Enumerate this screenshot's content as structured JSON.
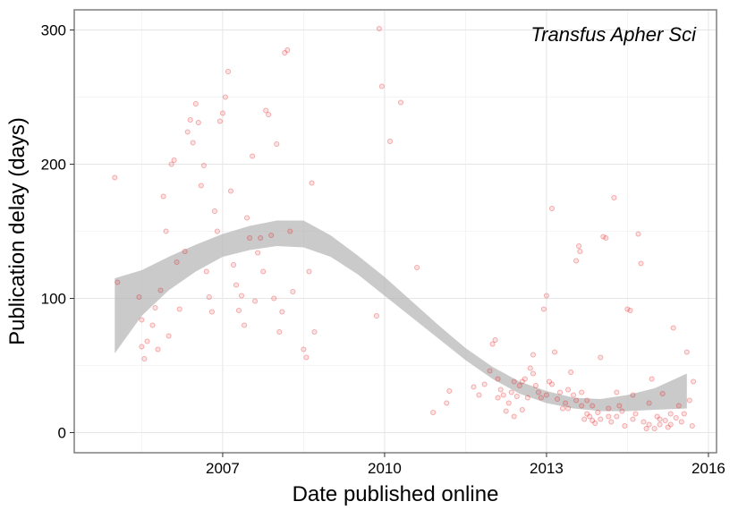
{
  "chart_data": {
    "type": "scatter",
    "title": "",
    "annotation": "Transfus Apher Sci",
    "xlabel": "Date published online",
    "ylabel": "Publication delay (days)",
    "xlim": [
      2004.25,
      2016.15
    ],
    "ylim": [
      -15,
      315
    ],
    "x_ticks": [
      2007,
      2010,
      2013,
      2016
    ],
    "x_tick_labels": [
      "2007",
      "2010",
      "2013",
      "2016"
    ],
    "y_ticks": [
      0,
      100,
      200,
      300
    ],
    "y_tick_labels": [
      "0",
      "100",
      "200",
      "300"
    ],
    "grid": true,
    "legend": "none",
    "point_color": "#e41a1c",
    "band_color": "#b3b3b3",
    "smooth_band": {
      "x": [
        2005.0,
        2005.5,
        2006.0,
        2006.5,
        2007.0,
        2007.5,
        2008.0,
        2008.5,
        2009.0,
        2009.5,
        2010.0,
        2010.5,
        2011.0,
        2011.5,
        2012.0,
        2012.5,
        2013.0,
        2013.5,
        2014.0,
        2014.5,
        2015.0,
        2015.6
      ],
      "lower": [
        59,
        87,
        106,
        120,
        131,
        136,
        139,
        138,
        131,
        118,
        102,
        86,
        70,
        54,
        40,
        29,
        22,
        18,
        16,
        16,
        17,
        18
      ],
      "upper": [
        115,
        121,
        131,
        140,
        148,
        154,
        158,
        158,
        147,
        132,
        116,
        98,
        80,
        63,
        49,
        38,
        31,
        26,
        25,
        28,
        33,
        44
      ]
    },
    "points": [
      [
        2005.0,
        190
      ],
      [
        2005.05,
        112
      ],
      [
        2005.45,
        101
      ],
      [
        2005.5,
        84
      ],
      [
        2005.5,
        64
      ],
      [
        2005.55,
        55
      ],
      [
        2005.6,
        68
      ],
      [
        2005.7,
        80
      ],
      [
        2005.75,
        93
      ],
      [
        2005.8,
        62
      ],
      [
        2005.85,
        106
      ],
      [
        2005.9,
        176
      ],
      [
        2005.95,
        150
      ],
      [
        2006.0,
        72
      ],
      [
        2006.05,
        200
      ],
      [
        2006.1,
        203
      ],
      [
        2006.15,
        127
      ],
      [
        2006.2,
        92
      ],
      [
        2006.3,
        135
      ],
      [
        2006.35,
        224
      ],
      [
        2006.4,
        233
      ],
      [
        2006.45,
        216
      ],
      [
        2006.5,
        245
      ],
      [
        2006.55,
        231
      ],
      [
        2006.6,
        184
      ],
      [
        2006.65,
        199
      ],
      [
        2006.7,
        120
      ],
      [
        2006.75,
        101
      ],
      [
        2006.8,
        90
      ],
      [
        2006.85,
        165
      ],
      [
        2006.9,
        150
      ],
      [
        2006.95,
        232
      ],
      [
        2007.0,
        238
      ],
      [
        2007.05,
        250
      ],
      [
        2007.1,
        269
      ],
      [
        2007.15,
        180
      ],
      [
        2007.2,
        125
      ],
      [
        2007.25,
        110
      ],
      [
        2007.3,
        91
      ],
      [
        2007.35,
        102
      ],
      [
        2007.4,
        80
      ],
      [
        2007.45,
        160
      ],
      [
        2007.5,
        145
      ],
      [
        2007.55,
        206
      ],
      [
        2007.6,
        98
      ],
      [
        2007.65,
        134
      ],
      [
        2007.7,
        145
      ],
      [
        2007.75,
        120
      ],
      [
        2007.8,
        240
      ],
      [
        2007.85,
        237
      ],
      [
        2007.9,
        147
      ],
      [
        2007.95,
        100
      ],
      [
        2008.0,
        215
      ],
      [
        2008.05,
        75
      ],
      [
        2008.1,
        90
      ],
      [
        2008.15,
        283
      ],
      [
        2008.2,
        285
      ],
      [
        2008.25,
        150
      ],
      [
        2008.3,
        105
      ],
      [
        2008.5,
        62
      ],
      [
        2008.55,
        56
      ],
      [
        2008.6,
        120
      ],
      [
        2008.65,
        186
      ],
      [
        2008.7,
        75
      ],
      [
        2009.85,
        87
      ],
      [
        2009.9,
        301
      ],
      [
        2009.95,
        258
      ],
      [
        2010.1,
        217
      ],
      [
        2010.3,
        246
      ],
      [
        2010.6,
        123
      ],
      [
        2010.9,
        15
      ],
      [
        2011.15,
        22
      ],
      [
        2011.2,
        31
      ],
      [
        2011.65,
        34
      ],
      [
        2011.75,
        28
      ],
      [
        2011.85,
        36
      ],
      [
        2011.95,
        46
      ],
      [
        2012.0,
        66
      ],
      [
        2012.05,
        69
      ],
      [
        2012.1,
        40
      ],
      [
        2012.15,
        32
      ],
      [
        2012.2,
        28
      ],
      [
        2012.25,
        16
      ],
      [
        2012.3,
        22
      ],
      [
        2012.35,
        30
      ],
      [
        2012.4,
        38
      ],
      [
        2012.45,
        27
      ],
      [
        2012.5,
        35
      ],
      [
        2012.55,
        17
      ],
      [
        2012.6,
        40
      ],
      [
        2012.65,
        26
      ],
      [
        2012.7,
        48
      ],
      [
        2012.75,
        58
      ],
      [
        2012.8,
        35
      ],
      [
        2012.85,
        30
      ],
      [
        2012.9,
        26
      ],
      [
        2012.95,
        92
      ],
      [
        2013.0,
        102
      ],
      [
        2013.05,
        38
      ],
      [
        2013.1,
        167
      ],
      [
        2013.15,
        60
      ],
      [
        2013.2,
        25
      ],
      [
        2013.25,
        30
      ],
      [
        2013.3,
        18
      ],
      [
        2013.35,
        22
      ],
      [
        2013.4,
        32
      ],
      [
        2013.45,
        45
      ],
      [
        2013.5,
        28
      ],
      [
        2013.55,
        128
      ],
      [
        2013.6,
        139
      ],
      [
        2013.62,
        135
      ],
      [
        2013.65,
        20
      ],
      [
        2013.7,
        10
      ],
      [
        2013.75,
        24
      ],
      [
        2013.8,
        12
      ],
      [
        2013.85,
        9
      ],
      [
        2013.9,
        7
      ],
      [
        2013.95,
        15
      ],
      [
        2014.0,
        56
      ],
      [
        2014.05,
        146
      ],
      [
        2014.1,
        145
      ],
      [
        2014.15,
        12
      ],
      [
        2014.2,
        8
      ],
      [
        2014.25,
        175
      ],
      [
        2014.3,
        30
      ],
      [
        2014.35,
        20
      ],
      [
        2014.4,
        16
      ],
      [
        2014.45,
        5
      ],
      [
        2014.5,
        92
      ],
      [
        2014.55,
        91
      ],
      [
        2014.6,
        28
      ],
      [
        2014.65,
        14
      ],
      [
        2014.7,
        148
      ],
      [
        2014.75,
        126
      ],
      [
        2014.8,
        8
      ],
      [
        2014.85,
        3
      ],
      [
        2014.9,
        6
      ],
      [
        2014.95,
        40
      ],
      [
        2015.0,
        3
      ],
      [
        2015.05,
        12
      ],
      [
        2015.1,
        6
      ],
      [
        2015.15,
        29
      ],
      [
        2015.2,
        9
      ],
      [
        2015.25,
        4
      ],
      [
        2015.3,
        6
      ],
      [
        2015.35,
        78
      ],
      [
        2015.4,
        11
      ],
      [
        2015.45,
        20
      ],
      [
        2015.5,
        8
      ],
      [
        2015.55,
        14
      ],
      [
        2015.6,
        60
      ],
      [
        2015.65,
        24
      ],
      [
        2015.7,
        5
      ],
      [
        2015.72,
        38
      ],
      [
        2013.4,
        18
      ],
      [
        2013.55,
        24
      ],
      [
        2013.65,
        30
      ],
      [
        2013.75,
        14
      ],
      [
        2013.85,
        20
      ],
      [
        2014.0,
        10
      ],
      [
        2014.15,
        18
      ],
      [
        2014.3,
        12
      ],
      [
        2014.6,
        10
      ],
      [
        2014.9,
        22
      ],
      [
        2015.1,
        10
      ],
      [
        2015.3,
        14
      ],
      [
        2012.75,
        44
      ],
      [
        2012.55,
        38
      ],
      [
        2012.4,
        12
      ],
      [
        2012.1,
        26
      ],
      [
        2013.0,
        28
      ],
      [
        2013.1,
        36
      ]
    ]
  }
}
